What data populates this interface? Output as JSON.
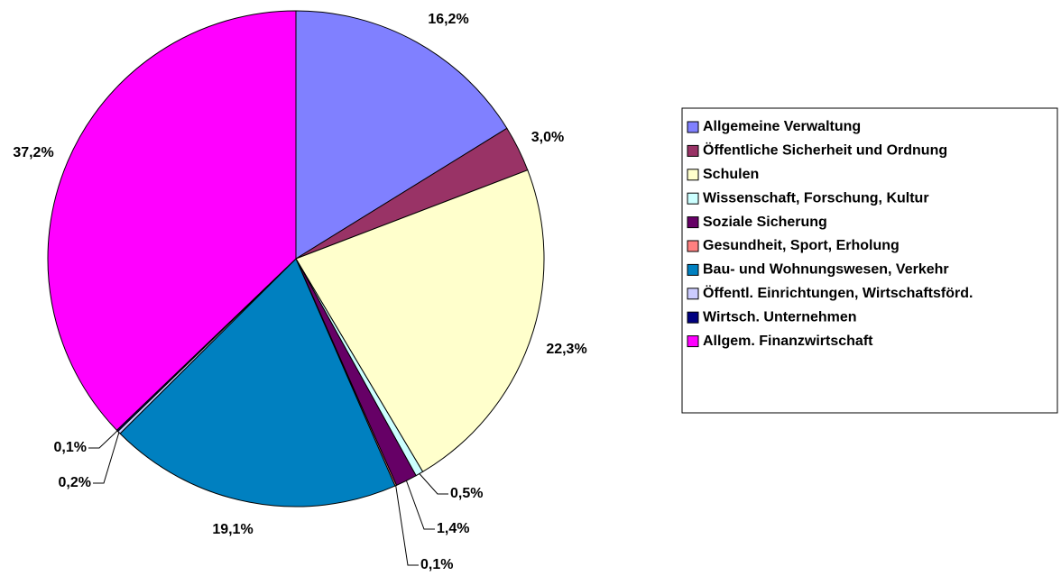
{
  "chart_data": {
    "type": "pie",
    "categories": [
      "Allgemeine Verwaltung",
      "Öffentliche Sicherheit und Ordnung",
      "Schulen",
      "Wissenschaft, Forschung, Kultur",
      "Soziale Sicherung",
      "Gesundheit, Sport, Erholung",
      "Bau- und Wohnungswesen, Verkehr",
      "Öffentl. Einrichtungen, Wirtschaftsförd.",
      "Wirtsch. Unternehmen",
      "Allgem. Finanzwirtschaft"
    ],
    "values": [
      16.2,
      3.0,
      22.3,
      0.5,
      1.4,
      0.1,
      19.1,
      0.2,
      0.1,
      37.2
    ],
    "value_labels": [
      "16,2%",
      "3,0%",
      "22,3%",
      "0,5%",
      "1,4%",
      "0,1%",
      "19,1%",
      "0,2%",
      "0,1%",
      "37,2%"
    ],
    "colors": [
      "#8080ff",
      "#993366",
      "#ffffcc",
      "#ccffff",
      "#660066",
      "#ff8080",
      "#0080c0",
      "#ccccff",
      "#000080",
      "#ff00ff"
    ],
    "legend": "right"
  }
}
